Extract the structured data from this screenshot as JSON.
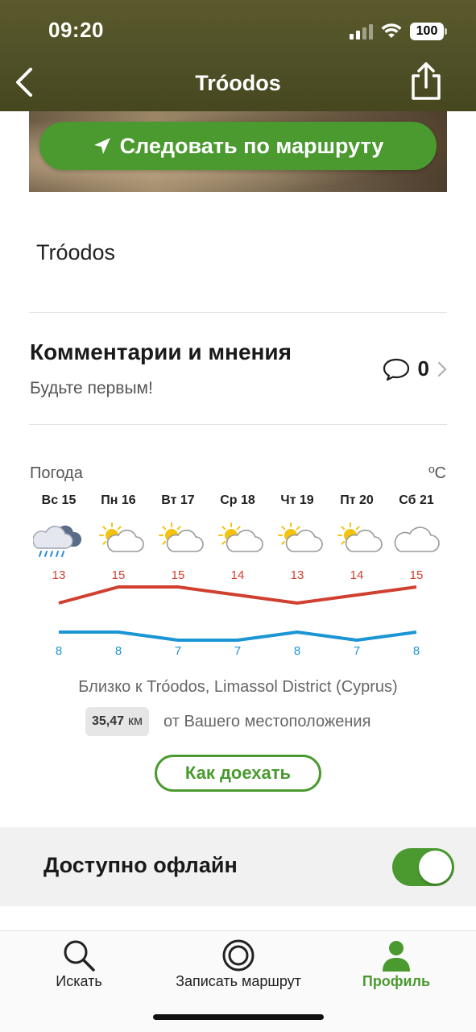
{
  "status_bar": {
    "time": "09:20",
    "battery": "100"
  },
  "nav": {
    "title": "Tróodos"
  },
  "follow_button": {
    "label": "Следовать по маршруту"
  },
  "route": {
    "name": "Tróodos"
  },
  "comments": {
    "title": "Комментарии и мнения",
    "subtitle": "Будьте первым!",
    "count": "0"
  },
  "weather": {
    "label": "Погода",
    "unit": "ºC",
    "days": [
      {
        "day": "Вс 15",
        "icon": "rain-cloud-icon",
        "high": "13",
        "low": "8"
      },
      {
        "day": "Пн 16",
        "icon": "sun-cloud-icon",
        "high": "15",
        "low": "8"
      },
      {
        "day": "Вт 17",
        "icon": "sun-cloud-icon",
        "high": "15",
        "low": "7"
      },
      {
        "day": "Ср 18",
        "icon": "sun-cloud-icon",
        "high": "14",
        "low": "7"
      },
      {
        "day": "Чт 19",
        "icon": "sun-cloud-icon",
        "high": "13",
        "low": "8"
      },
      {
        "day": "Пт 20",
        "icon": "sun-cloud-icon",
        "high": "14",
        "low": "7"
      },
      {
        "day": "Сб 21",
        "icon": "cloud-icon",
        "high": "15",
        "low": "8"
      }
    ],
    "high_color": "#d04030",
    "low_color": "#1b95d4"
  },
  "location": {
    "nearby": "Близко к Tróodos, Limassol District (Cyprus)",
    "distance_value": "35,47",
    "distance_unit": "км",
    "distance_text": "от Вашего местоположения",
    "directions_label": "Как доехать"
  },
  "offline": {
    "label": "Доступно офлайн",
    "enabled": true
  },
  "tabbar": {
    "tabs": [
      {
        "label": "Искать",
        "icon": "search-icon"
      },
      {
        "label": "Записать маршрут",
        "icon": "record-icon"
      },
      {
        "label": "Профиль",
        "icon": "profile-icon"
      }
    ]
  },
  "accent_color": "#4a9a30"
}
